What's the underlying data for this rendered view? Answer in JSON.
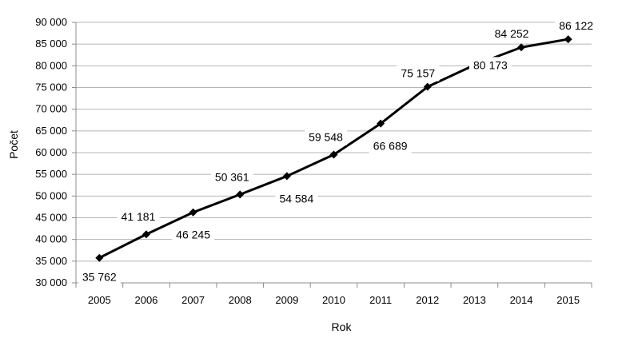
{
  "chart_data": {
    "type": "line",
    "title": "",
    "xlabel": "Rok",
    "ylabel": "Počet",
    "categories": [
      "2005",
      "2006",
      "2007",
      "2008",
      "2009",
      "2010",
      "2011",
      "2012",
      "2013",
      "2014",
      "2015"
    ],
    "series": [
      {
        "values": [
          35762,
          41181,
          46245,
          50361,
          54584,
          59548,
          66689,
          75157,
          80173,
          84252,
          86122
        ],
        "data_labels": [
          "35 762",
          "41 181",
          "46 245",
          "50 361",
          "54 584",
          "59 548",
          "66 689",
          "75 157",
          "80 173",
          "84 252",
          "86 122"
        ],
        "color": "#000000",
        "marker": "diamond"
      }
    ],
    "ylim": [
      30000,
      90000
    ],
    "yticks": [
      30000,
      35000,
      40000,
      45000,
      50000,
      55000,
      60000,
      65000,
      70000,
      75000,
      80000,
      85000,
      90000
    ],
    "ytick_labels": [
      "30 000",
      "35 000",
      "40 000",
      "45 000",
      "50 000",
      "55 000",
      "60 000",
      "65 000",
      "70 000",
      "75 000",
      "80 000",
      "85 000",
      "90 000"
    ],
    "grid": true,
    "legend": false
  }
}
